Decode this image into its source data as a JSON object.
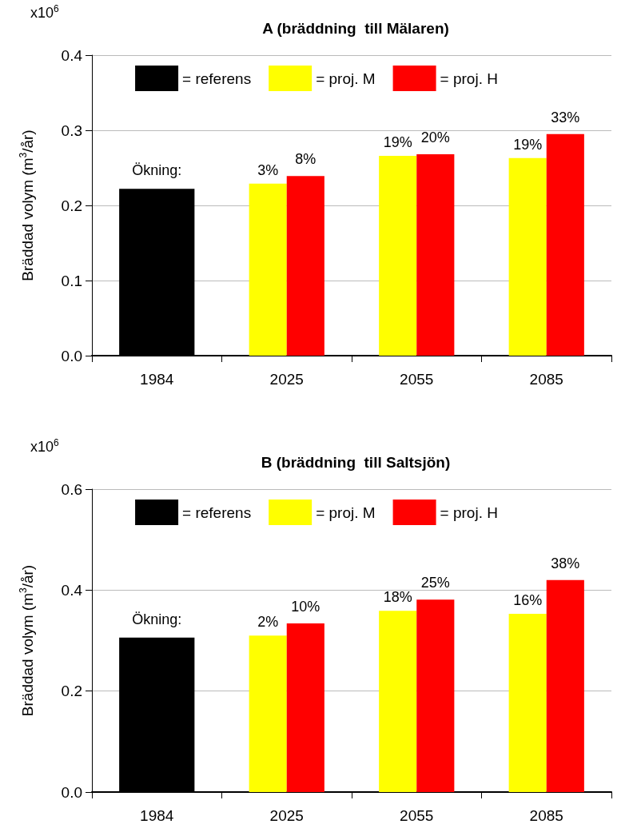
{
  "chart_data": [
    {
      "type": "bar",
      "title": "A (bräddning  till Mälaren)",
      "ylabel": "Bräddad volym (m$^{3}$/år)",
      "categories": [
        "1984",
        "2025",
        "2055",
        "2085"
      ],
      "annotations": [
        "x10$^{6}$",
        "Ökning:",
        "3%",
        "8%",
        "19%",
        "20%",
        "19%",
        "33%"
      ],
      "series": [
        {
          "name": "= referens",
          "color": "#000000",
          "values": [
            0.222,
            null,
            null,
            null
          ]
        },
        {
          "name": "= proj. M",
          "color": "#ffff00",
          "values": [
            null,
            0.229,
            0.266,
            0.263
          ]
        },
        {
          "name": "= proj. H",
          "color": "#ff0000",
          "values": [
            null,
            0.239,
            0.268,
            0.295
          ]
        }
      ],
      "ylim": [
        0,
        0.4
      ],
      "yticks": [
        {
          "value": 0,
          "label": "0.0"
        },
        0.1,
        0.2,
        0.3,
        0.4
      ],
      "grid": "y",
      "legend": "top"
    },
    {
      "type": "bar",
      "title": "B (bräddning  till Saltsjön)",
      "ylabel": "Bräddad volym (m$^{3}$/år)",
      "categories": [
        "1984",
        "2025",
        "2055",
        "2085"
      ],
      "annotations": [
        "x10$^{6}$",
        "Ökning:",
        "2%",
        "10%",
        "18%",
        "25%",
        "16%",
        "38%"
      ],
      "series": [
        {
          "name": "= referens",
          "color": "#000000",
          "values": [
            0.306,
            null,
            null,
            null
          ]
        },
        {
          "name": "= proj. M",
          "color": "#ffff00",
          "values": [
            null,
            0.31,
            0.359,
            0.353
          ]
        },
        {
          "name": "= proj. H",
          "color": "#ff0000",
          "values": [
            null,
            0.334,
            0.381,
            0.42
          ]
        }
      ],
      "ylim": [
        0,
        0.6
      ],
      "yticks": [
        {
          "value": 0,
          "label": "0.0"
        },
        0.2,
        0.4,
        0.6
      ],
      "grid": "y",
      "legend": "top"
    }
  ]
}
